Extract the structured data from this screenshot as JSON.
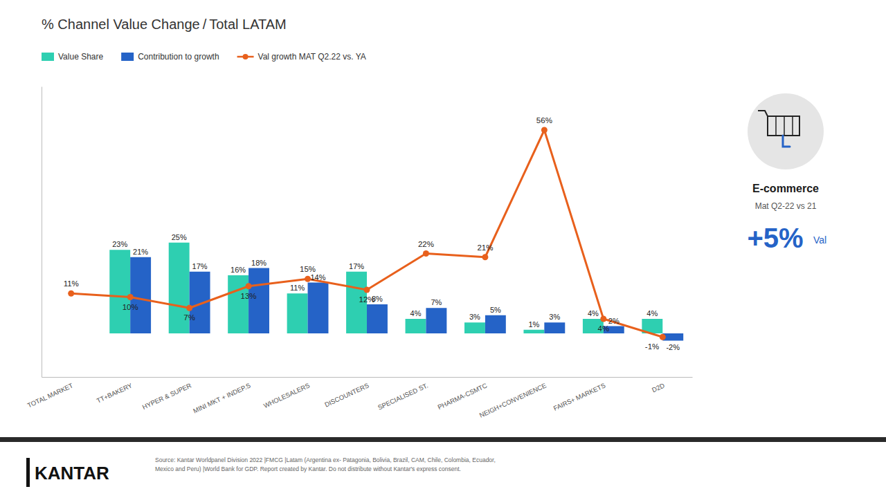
{
  "chart_data": {
    "type": "bar",
    "title": "% Channel Value Change / Total LATAM",
    "categories": [
      "TOTAL MARKET",
      "TT+BAKERY",
      "HYPER & SUPER",
      "MINI MKT + INDEP.S",
      "WHOLESALERS",
      "DISCOUNTERS",
      "SPECIALISED ST.",
      "PHARMA-CSMTC",
      "NEIGH+CONVENIENCE",
      "FAIRS+ MARKETS",
      "D2D"
    ],
    "series": [
      {
        "name": "Value Share",
        "type": "bar",
        "color": "#2ECFB1",
        "values": [
          null,
          23,
          25,
          16,
          11,
          17,
          4,
          3,
          1,
          4,
          4
        ],
        "value_labels": [
          null,
          "23%",
          "25%",
          "16%",
          "11%",
          "17%",
          "4%",
          "3%",
          "1%",
          "4%",
          "4%"
        ]
      },
      {
        "name": "Contribution to growth",
        "type": "bar",
        "color": "#2563C7",
        "values": [
          null,
          21,
          17,
          18,
          14,
          8,
          7,
          5,
          3,
          2,
          -2
        ],
        "value_labels": [
          null,
          "21%",
          "17%",
          "18%",
          "14%",
          "8%",
          "7%",
          "5%",
          "3%",
          "2%",
          "-2%"
        ]
      },
      {
        "name": "Val growth MAT Q2.22 vs. YA",
        "type": "line",
        "color": "#E8601C",
        "marker": "circle",
        "values": [
          11,
          10,
          7,
          13,
          15,
          12,
          22,
          21,
          56,
          4,
          -1
        ],
        "value_labels": [
          "11%",
          "10%",
          "7%",
          "13%",
          "15%",
          "12%",
          "22%",
          "21%",
          "56%",
          "4%",
          "-1%"
        ]
      }
    ],
    "ylim": [
      -12,
      68
    ],
    "yticks": [],
    "tick_labels": "x",
    "grid": false,
    "legend": "upper left",
    "data_labels": true,
    "annotations": [
      "E-commerce",
      "Mat Q2-22 vs 21",
      "+5%",
      "Val",
      "KANTAR",
      "Source: Kantar Worldpanel Division 2022 |FMCG |Latam (Argentina ex- Patagonia, Bolivia, Brazil, CAM, Chile, Colombia, Ecuador,\nMexico and Peru) |World Bank for GDP. Report created by Kantar. Do not distribute without Kantar's express consent."
    ]
  }
}
